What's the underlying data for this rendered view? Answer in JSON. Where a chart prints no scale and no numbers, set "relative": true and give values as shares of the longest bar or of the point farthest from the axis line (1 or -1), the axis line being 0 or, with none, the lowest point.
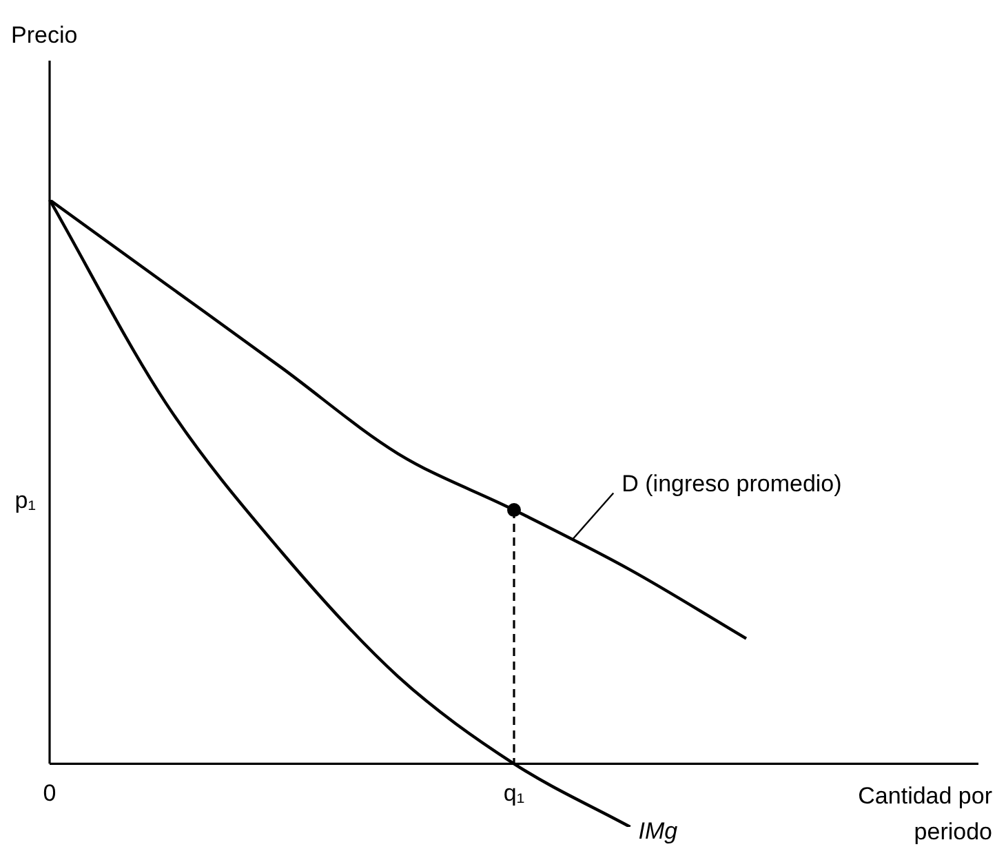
{
  "chart_data": {
    "type": "line",
    "relative": true,
    "xlabel": "Cantidad por periodo",
    "categories": [
      "0",
      null,
      null,
      null,
      "q₁",
      null,
      null,
      null,
      null
    ],
    "marker": "none",
    "series": [
      {
        "name": "D (ingreso promedio)",
        "color": "#000000",
        "values": [
          1,
          0.851,
          0.702,
          0.55,
          0.45,
          0.344,
          0.222,
          null,
          null
        ]
      },
      {
        "name": "IMg",
        "color": "#000000",
        "values": [
          1,
          0.64,
          0.375,
          0.155,
          0,
          -0.112,
          null,
          null,
          null
        ]
      },
      {
        "type": "scatter",
        "color": "#000000",
        "marker": "circle",
        "line_style": "dashed",
        "values": [
          null,
          null,
          null,
          null,
          0.45,
          null,
          null,
          null,
          null
        ]
      }
    ],
    "annotations": [
      "Precio",
      "p₁"
    ]
  }
}
